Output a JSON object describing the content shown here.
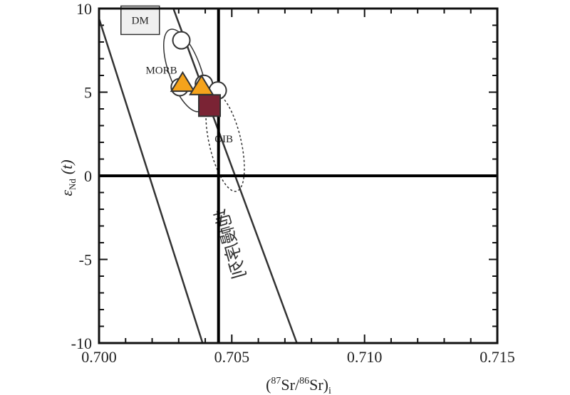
{
  "chart_data": {
    "type": "scatter",
    "xlabel": "(87Sr/86Sr)i",
    "xlabel_parts": {
      "open": "(",
      "sup1": "87",
      "mid": "Sr/",
      "sup2": "86",
      "close": "Sr)",
      "sub": "i"
    },
    "ylabel": "εNd (t)",
    "ylabel_parts": {
      "epsilon": "ε",
      "sub": "Nd",
      "t": "(t)"
    },
    "xlim": [
      0.7,
      0.715
    ],
    "ylim": [
      -10,
      10
    ],
    "x_ticks": [
      0.7,
      0.705,
      0.71,
      0.715
    ],
    "x_tick_labels": [
      "0.700",
      "0.705",
      "0.710",
      "0.715"
    ],
    "y_ticks": [
      -10,
      -5,
      0,
      5,
      10
    ],
    "y_tick_labels": [
      "-10",
      "-5",
      "0",
      "5",
      "10"
    ],
    "reference_lines": [
      {
        "name": "bulk-earth-sr",
        "orientation": "vertical",
        "value": 0.7045
      },
      {
        "name": "chur-nd",
        "orientation": "horizontal",
        "value": 0
      }
    ],
    "mantle_array": {
      "label": "地幔序列",
      "line_left": [
        [
          0.7,
          9.4
        ],
        [
          0.7039,
          -10
        ]
      ],
      "line_right": [
        [
          0.7028,
          10
        ],
        [
          0.70745,
          -10
        ]
      ]
    },
    "fields": [
      {
        "name": "DM",
        "label": "DM",
        "shape": "box",
        "center": [
          0.70155,
          9.3
        ]
      },
      {
        "name": "MORB",
        "label": "MORB",
        "shape": "ellipse",
        "center": [
          0.70323,
          6.3
        ],
        "rx": 0.0006,
        "ry": 2.6,
        "tilt_deg": -20
      },
      {
        "name": "OIB",
        "label": "OIB",
        "shape": "dashed-ellipse",
        "center": [
          0.70475,
          2.0
        ],
        "rx": 0.0006,
        "ry": 3.0,
        "tilt_deg": -13
      }
    ],
    "series": [
      {
        "name": "circles",
        "marker": "circle",
        "color": "#ffffff",
        "stroke": "#333333",
        "points": [
          [
            0.7031,
            8.1
          ],
          [
            0.70304,
            5.3
          ],
          [
            0.70395,
            5.5
          ],
          [
            0.70447,
            5.1
          ]
        ]
      },
      {
        "name": "triangles",
        "marker": "triangle",
        "color": "#F5A31C",
        "stroke": "#333333",
        "points": [
          [
            0.70315,
            5.5
          ],
          [
            0.70386,
            5.3
          ]
        ]
      },
      {
        "name": "squares",
        "marker": "square",
        "color": "#7A2334",
        "stroke": "#333333",
        "points": [
          [
            0.70416,
            4.2
          ]
        ]
      }
    ]
  }
}
